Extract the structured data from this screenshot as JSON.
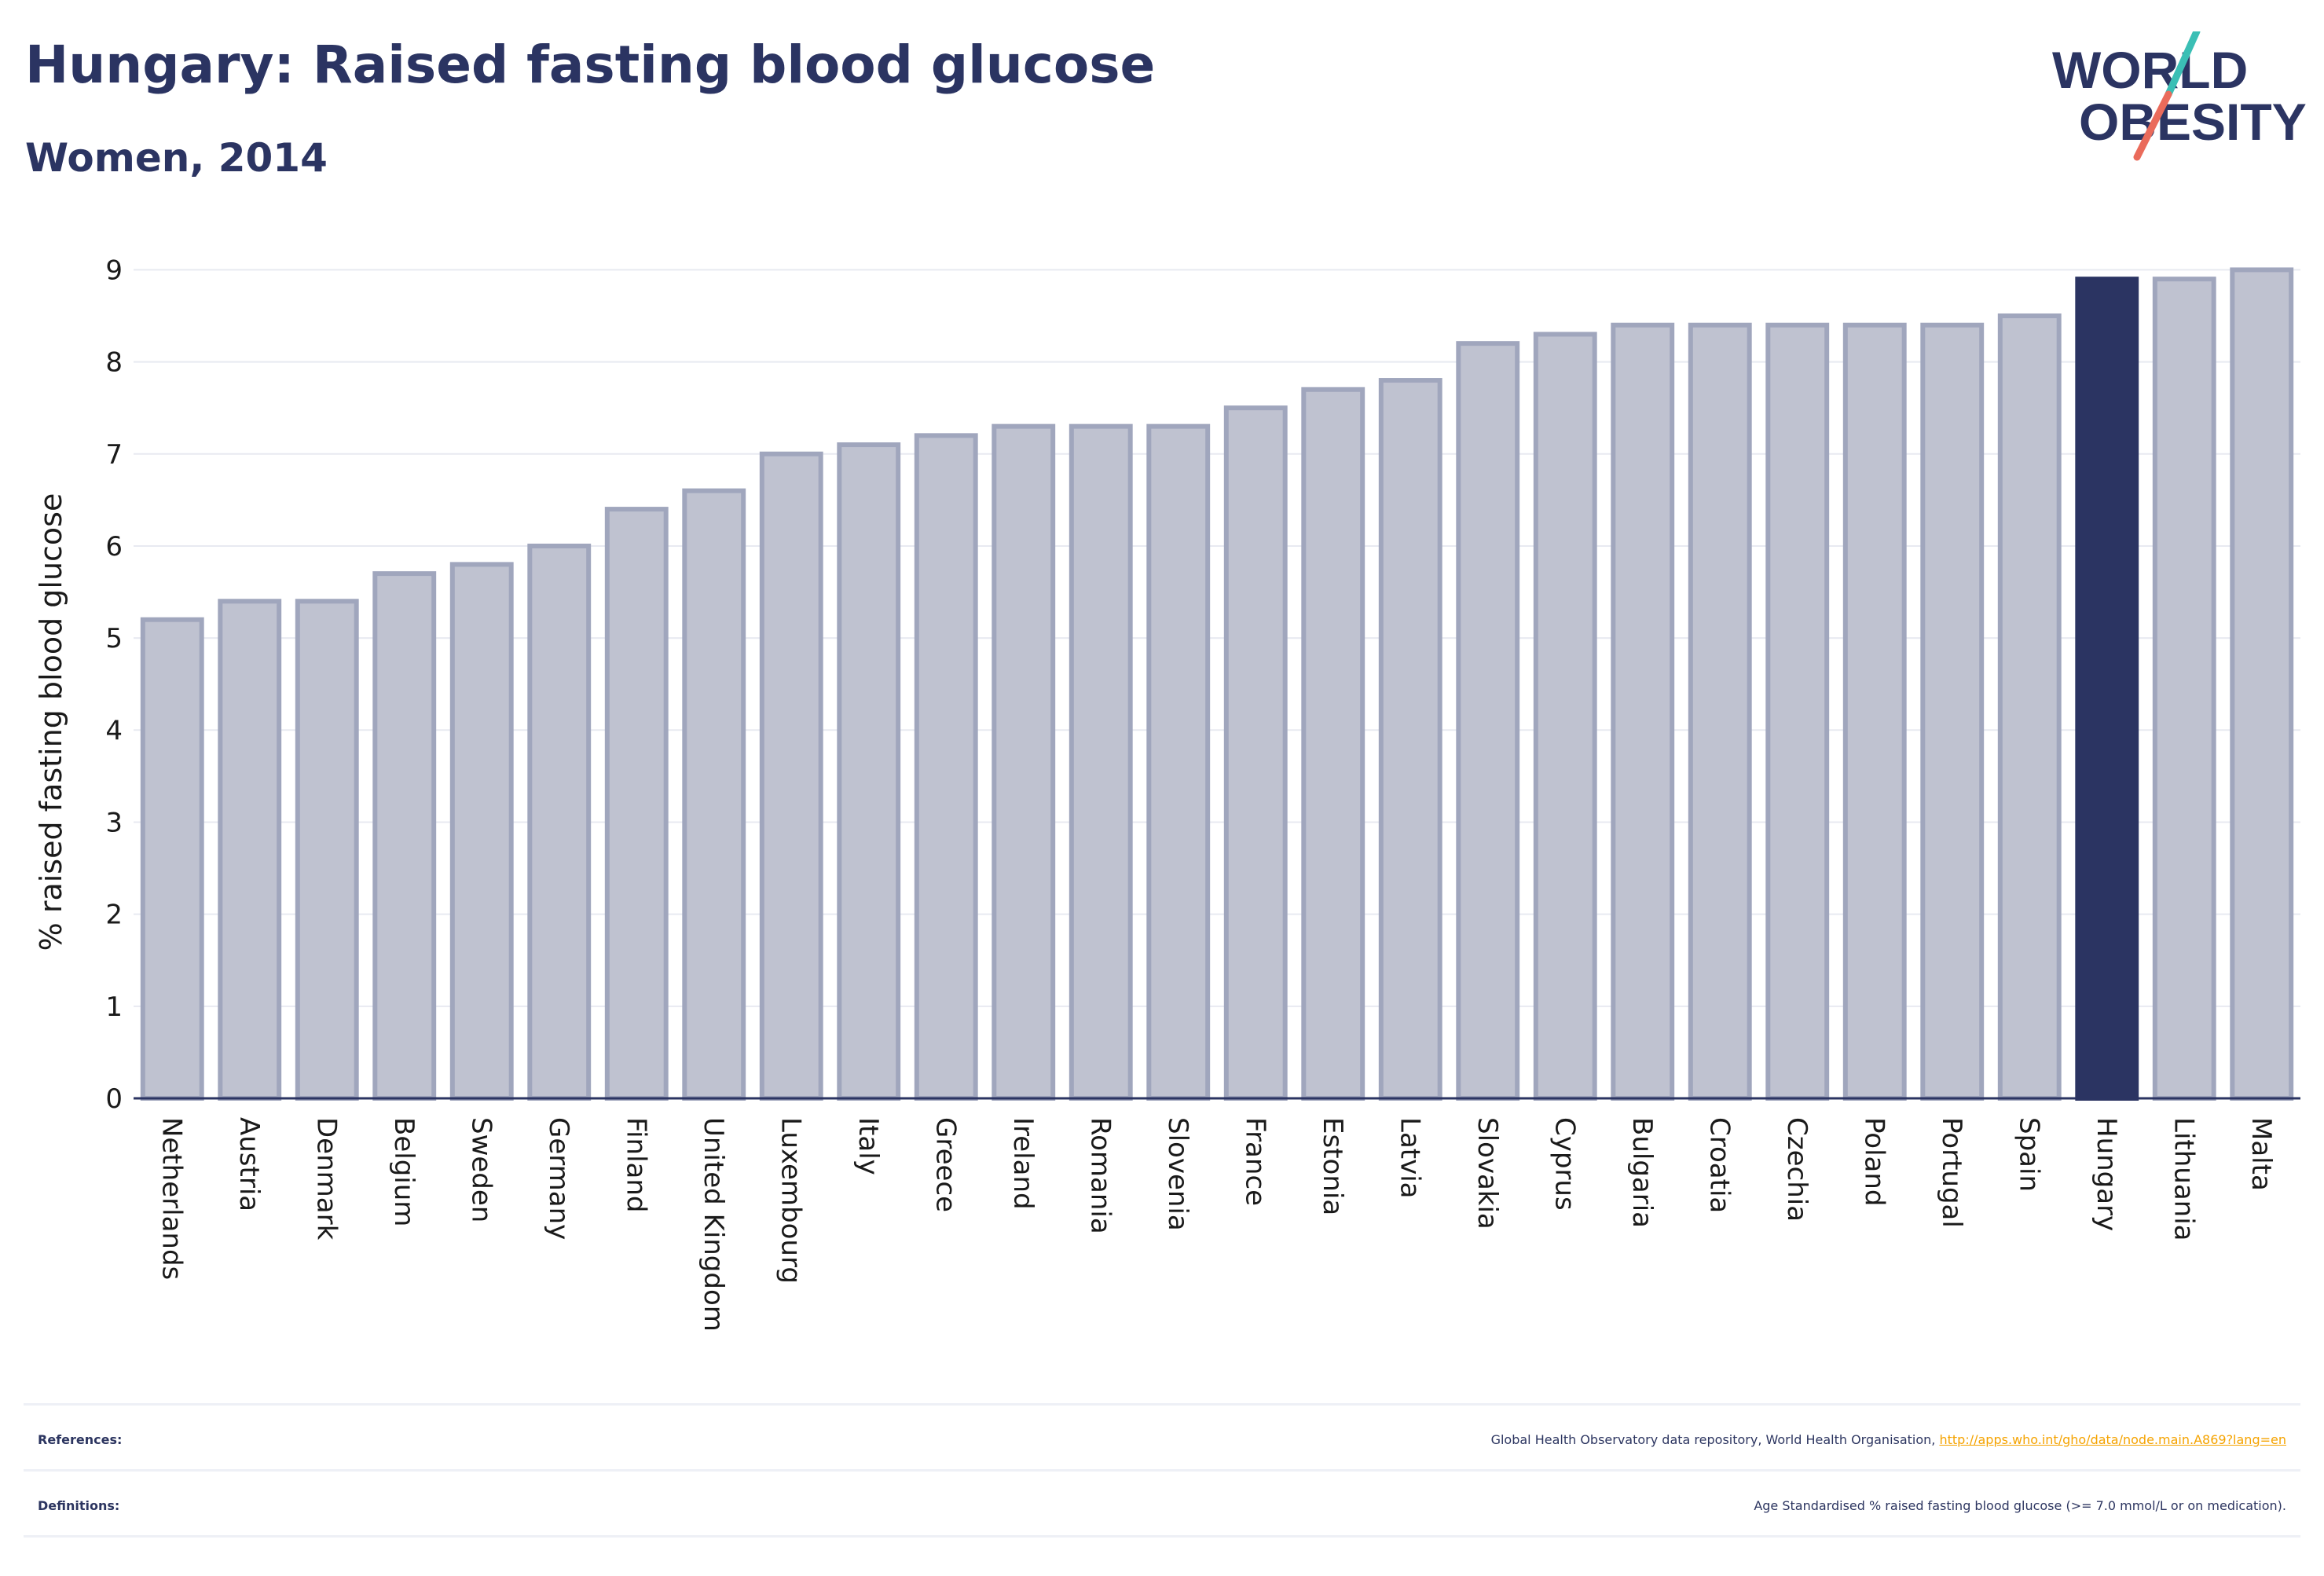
{
  "header": {
    "title": "Hungary: Raised fasting blood glucose",
    "subtitle": "Women, 2014"
  },
  "logo": {
    "line1": "WORLD",
    "line2": "OBESITY",
    "colors": {
      "text": "#2b3462",
      "slash_teal": "#3bbfb5",
      "slash_coral": "#ea6b5b"
    }
  },
  "chart_data": {
    "type": "bar",
    "title": "Hungary: Raised fasting blood glucose",
    "subtitle": "Women, 2014",
    "xlabel": "",
    "ylabel": "% raised fasting blood glucose",
    "ylim": [
      0,
      9.2
    ],
    "yticks": [
      0,
      1,
      2,
      3,
      4,
      5,
      6,
      7,
      8,
      9
    ],
    "grid": true,
    "highlight": "Hungary",
    "colors": {
      "bar": "#bfc2d0",
      "bar_edge": "#a0a6bd",
      "highlight": "#2b3462"
    },
    "categories": [
      "Netherlands",
      "Austria",
      "Denmark",
      "Belgium",
      "Sweden",
      "Germany",
      "Finland",
      "United Kingdom",
      "Luxembourg",
      "Italy",
      "Greece",
      "Ireland",
      "Romania",
      "Slovenia",
      "France",
      "Estonia",
      "Latvia",
      "Slovakia",
      "Cyprus",
      "Bulgaria",
      "Croatia",
      "Czechia",
      "Poland",
      "Portugal",
      "Spain",
      "Hungary",
      "Lithuania",
      "Malta"
    ],
    "values": [
      5.2,
      5.4,
      5.4,
      5.7,
      5.8,
      6.0,
      6.4,
      6.6,
      7.0,
      7.1,
      7.2,
      7.3,
      7.3,
      7.3,
      7.5,
      7.7,
      7.8,
      8.2,
      8.3,
      8.4,
      8.4,
      8.4,
      8.4,
      8.4,
      8.5,
      8.9,
      8.9,
      9.0
    ]
  },
  "footer": {
    "references_label": "References:",
    "references_text": "Global Health Observatory data repository, World Health Organisation, ",
    "references_link": "http://apps.who.int/gho/data/node.main.A869?lang=en",
    "definitions_label": "Definitions:",
    "definitions_text": "Age Standardised % raised fasting blood glucose (>= 7.0 mmol/L or on medication)."
  }
}
